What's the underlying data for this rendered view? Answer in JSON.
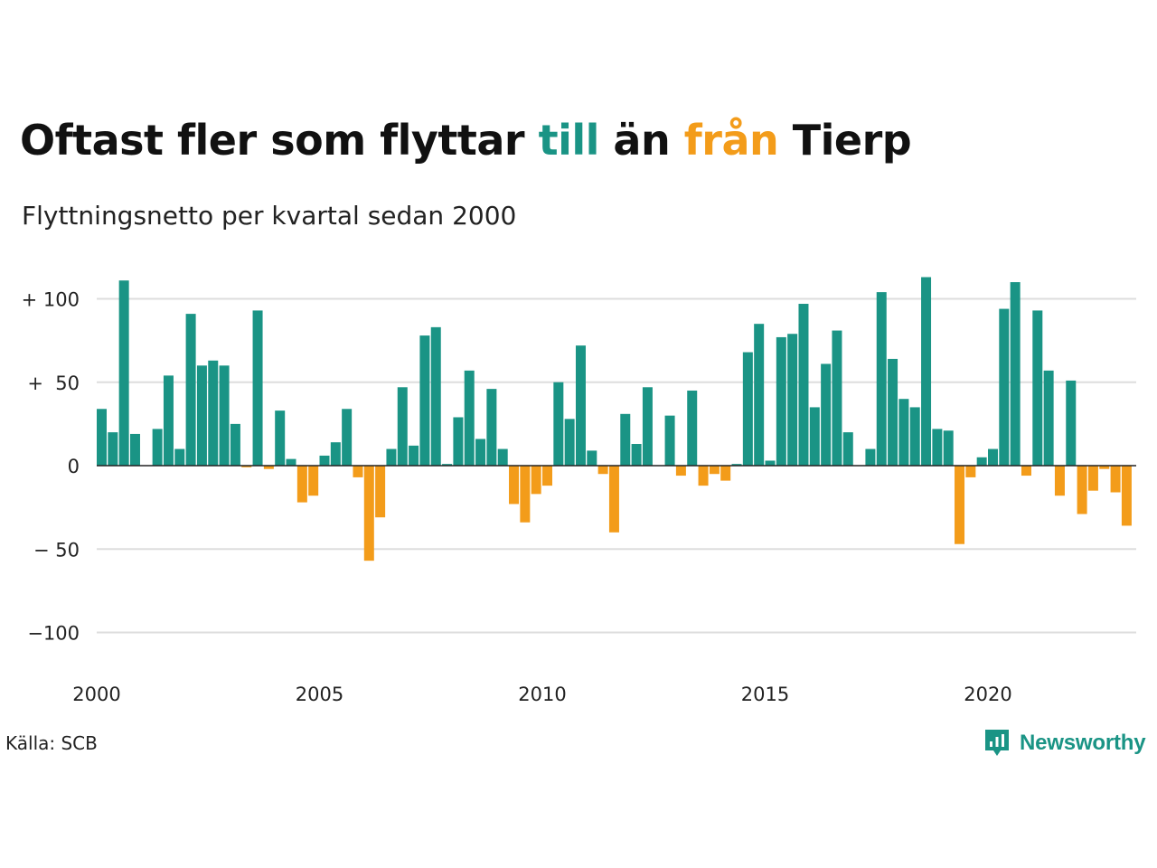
{
  "title": {
    "part1": "Oftast fler som flyttar ",
    "highlight_in": "till",
    "part2": " än ",
    "highlight_out": "från",
    "part3": " Tierp"
  },
  "subtitle": "Flyttningsnetto per kvartal sedan 2000",
  "source": "Källa: SCB",
  "brand": "Newsworthy",
  "colors": {
    "positive": "#1a9485",
    "negative": "#f39c1a",
    "grid": "#dddddd",
    "zero_line": "#222222"
  },
  "chart_data": {
    "type": "bar",
    "start_year": 2000,
    "quarters_per_year": 4,
    "ylim": [
      -120,
      120
    ],
    "yticks": [
      {
        "value": 100,
        "label": "+ 100"
      },
      {
        "value": 50,
        "label": "+  50"
      },
      {
        "value": 0,
        "label": "0"
      },
      {
        "value": -50,
        "label": "− 50"
      },
      {
        "value": -100,
        "label": "−100"
      }
    ],
    "xticks": [
      {
        "year": 2000,
        "label": "2000"
      },
      {
        "year": 2005,
        "label": "2005"
      },
      {
        "year": 2010,
        "label": "2010"
      },
      {
        "year": 2015,
        "label": "2015"
      },
      {
        "year": 2020,
        "label": "2020"
      }
    ],
    "values": [
      34,
      20,
      111,
      19,
      0,
      22,
      54,
      10,
      91,
      60,
      63,
      60,
      25,
      -1,
      93,
      -2,
      33,
      4,
      -22,
      -18,
      6,
      14,
      34,
      -7,
      -57,
      -31,
      10,
      47,
      12,
      78,
      83,
      1,
      29,
      57,
      16,
      46,
      10,
      -23,
      -34,
      -17,
      -12,
      50,
      28,
      72,
      9,
      -5,
      -40,
      31,
      13,
      47,
      0,
      30,
      -6,
      45,
      -12,
      -5,
      -9,
      1,
      68,
      85,
      3,
      77,
      79,
      97,
      35,
      61,
      81,
      20,
      0,
      10,
      104,
      64,
      40,
      35,
      113,
      22,
      21,
      -47,
      -7,
      5,
      10,
      94,
      110,
      -6,
      93,
      57,
      -18,
      51,
      -29,
      -15,
      -2,
      -16,
      -36
    ]
  }
}
